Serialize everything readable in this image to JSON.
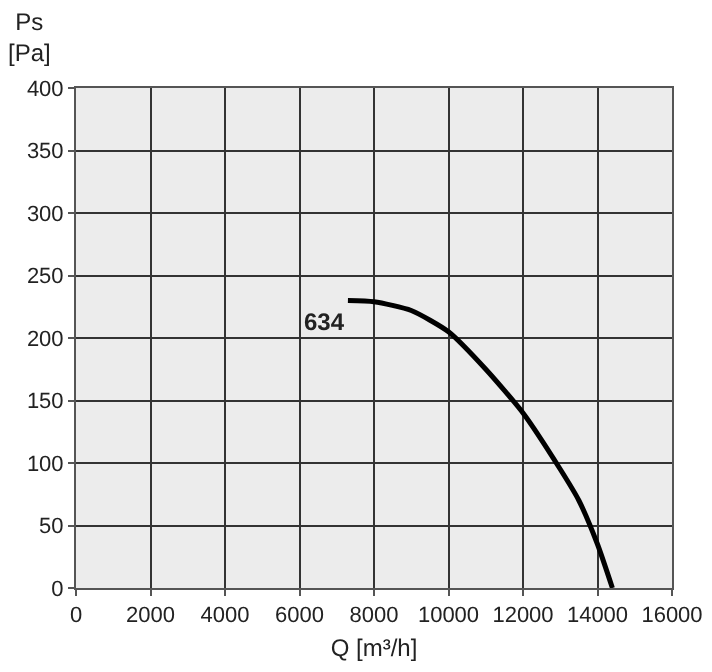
{
  "chart_data": {
    "type": "line",
    "xlabel": "Q [m³/h]",
    "ylabel": "Ps [Pa]",
    "xlim": [
      0,
      16000
    ],
    "xticks": [
      0,
      2000,
      4000,
      6000,
      8000,
      10000,
      12000,
      14000,
      16000
    ],
    "ylim": [
      0,
      400
    ],
    "yticks": [
      0,
      50,
      100,
      150,
      200,
      250,
      300,
      350,
      400
    ],
    "grid": true,
    "marker": "none",
    "line_style": "solid",
    "series": [
      {
        "name": "634",
        "color": "#000000",
        "x": [
          7300,
          8000,
          9000,
          10000,
          11000,
          12000,
          13000,
          13500,
          14000,
          14400
        ],
        "values": [
          230,
          229,
          222,
          205,
          175,
          140,
          95,
          70,
          35,
          0
        ]
      }
    ]
  }
}
